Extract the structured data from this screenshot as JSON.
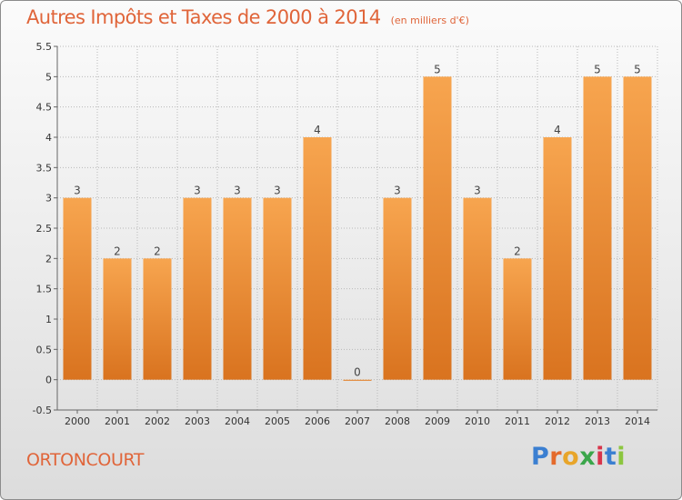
{
  "chart_data": {
    "type": "bar",
    "title": "Autres Impôts et Taxes de 2000 à 2014",
    "unit": "(en milliers d'€)",
    "categories": [
      "2000",
      "2001",
      "2002",
      "2003",
      "2004",
      "2005",
      "2006",
      "2007",
      "2008",
      "2009",
      "2010",
      "2011",
      "2012",
      "2013",
      "2014"
    ],
    "values": [
      3,
      2,
      2,
      3,
      3,
      3,
      4,
      0,
      3,
      5,
      3,
      2,
      4,
      5,
      5
    ],
    "value_labels": [
      "3",
      "2",
      "2",
      "3",
      "3",
      "3",
      "4",
      "0",
      "3",
      "5",
      "3",
      "2",
      "4",
      "5",
      "5"
    ],
    "ylim": [
      -0.5,
      5.5
    ],
    "yticks": [
      "-0.5",
      "0",
      "0.5",
      "1",
      "1.5",
      "2",
      "2.5",
      "3",
      "3.5",
      "4",
      "4.5",
      "5",
      "5.5"
    ],
    "grid": true,
    "bar_color_light": "#f7a54f",
    "bar_color_dark": "#d9731f"
  },
  "footer": {
    "commune": "ORTONCOURT",
    "logo_letters": [
      "P",
      "r",
      "o",
      "x",
      "i",
      "t",
      "i"
    ],
    "logo_colors": [
      "#3b7fd1",
      "#e46a2b",
      "#e8a52a",
      "#3aa64a",
      "#d8344a",
      "#3b7fd1",
      "#8cc63f"
    ]
  },
  "colors": {
    "title": "#e0653a",
    "grid": "#b9b9b9"
  }
}
